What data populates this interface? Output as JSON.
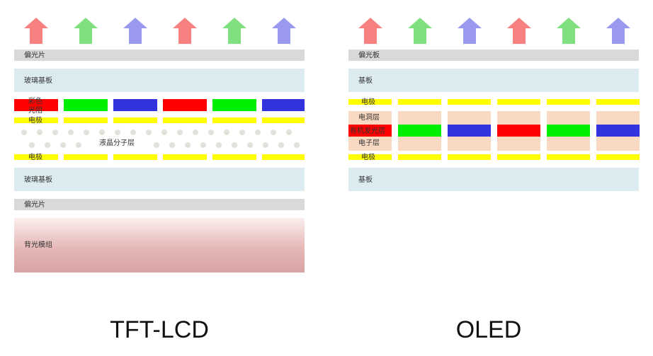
{
  "lcd": {
    "title": "TFT-LCD",
    "layers": {
      "polarizer_top": "偏光片",
      "glass_top": "玻璃基板",
      "color_filter": [
        "彩色",
        "光阻"
      ],
      "electrode_top": "电极",
      "liquid_crystal": "液晶分子层",
      "electrode_bottom": "电极",
      "glass_bottom": "玻璃基板",
      "polarizer_bottom": "偏光片",
      "backlight": "背光模组"
    }
  },
  "oled": {
    "title": "OLED",
    "layers": {
      "polarizer": "偏光板",
      "substrate_top": "基板",
      "electrode_top": "电极",
      "hole_layer": "电洞层",
      "emissive_layer": "有机发光层",
      "electron_layer": "电子层",
      "electrode_bottom": "电极",
      "substrate_bottom": "基板"
    }
  }
}
